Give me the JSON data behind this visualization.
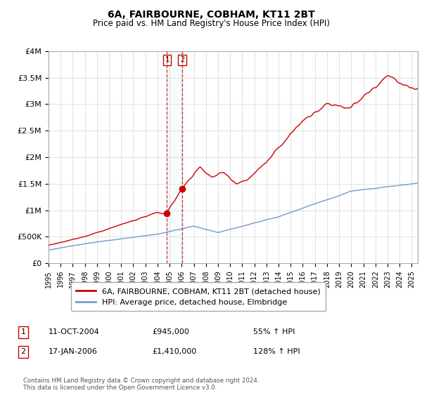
{
  "title": "6A, FAIRBOURNE, COBHAM, KT11 2BT",
  "subtitle": "Price paid vs. HM Land Registry's House Price Index (HPI)",
  "red_label": "6A, FAIRBOURNE, COBHAM, KT11 2BT (detached house)",
  "blue_label": "HPI: Average price, detached house, Elmbridge",
  "transaction1_label": "1",
  "transaction1_date": "11-OCT-2004",
  "transaction1_price": "£945,000",
  "transaction1_hpi": "55% ↑ HPI",
  "transaction2_label": "2",
  "transaction2_date": "17-JAN-2006",
  "transaction2_price": "£1,410,000",
  "transaction2_hpi": "128% ↑ HPI",
  "xmin": 1995.0,
  "xmax": 2025.5,
  "ymin": 0,
  "ymax": 4000000,
  "vline_x1": 2004.78,
  "vline_x2": 2006.04,
  "marker1_x": 2004.78,
  "marker1_y": 945000,
  "marker2_x": 2006.04,
  "marker2_y": 1410000,
  "red_color": "#cc0000",
  "blue_color": "#7799cc",
  "vline_color": "#cc0000",
  "background_color": "#ffffff",
  "footnote": "Contains HM Land Registry data © Crown copyright and database right 2024.\nThis data is licensed under the Open Government Licence v3.0.",
  "yticks": [
    0,
    500000,
    1000000,
    1500000,
    2000000,
    2500000,
    3000000,
    3500000,
    4000000
  ],
  "ytick_labels": [
    "£0",
    "£500K",
    "£1M",
    "£1.5M",
    "£2M",
    "£2.5M",
    "£3M",
    "£3.5M",
    "£4M"
  ]
}
